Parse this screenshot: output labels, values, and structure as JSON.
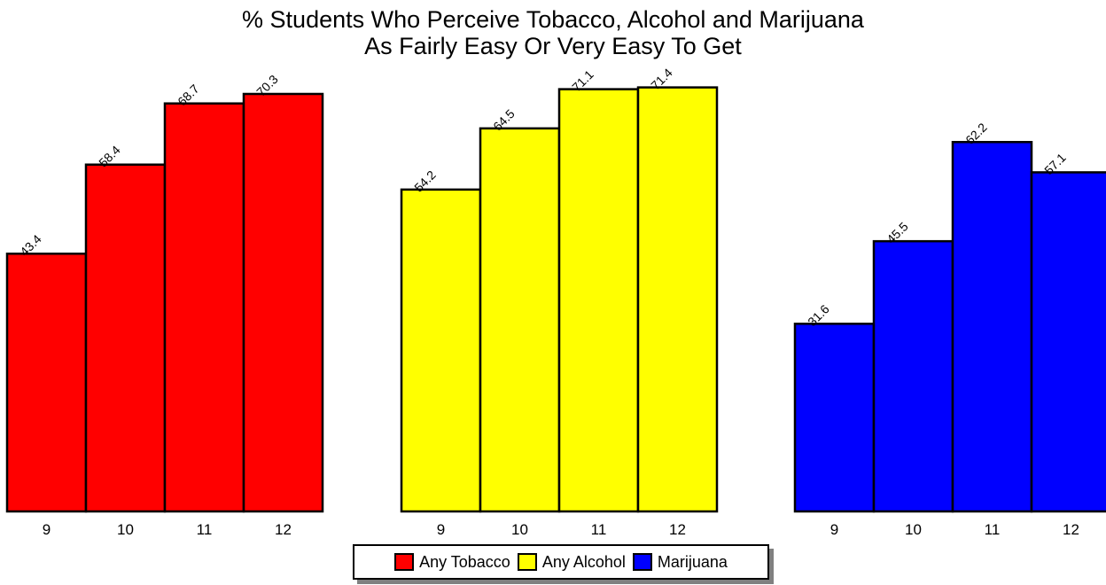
{
  "chart_data": {
    "type": "bar",
    "title": "% Students Who Perceive Tobacco, Alcohol and Marijuana",
    "subtitle": "As Fairly Easy Or Very Easy To Get",
    "categories": [
      "9",
      "10",
      "11",
      "12"
    ],
    "series": [
      {
        "name": "Any Tobacco",
        "color": "#ff0000",
        "values": [
          43.4,
          58.4,
          68.7,
          70.3
        ],
        "labels": [
          "43.4",
          "58.4",
          "68.7",
          "70.3"
        ]
      },
      {
        "name": "Any Alcohol",
        "color": "#ffff00",
        "values": [
          54.2,
          64.5,
          71.1,
          71.4
        ],
        "labels": [
          "54.2",
          "64.5",
          "71.1",
          "71.4"
        ]
      },
      {
        "name": "Marijuana",
        "color": "#0000ff",
        "values": [
          31.6,
          45.5,
          62.2,
          57.1
        ],
        "labels": [
          "31.6",
          "45.5",
          "62.2",
          "57.1"
        ]
      }
    ],
    "ylim": [
      0,
      100
    ],
    "grid": false,
    "legend_position": "bottom-center"
  }
}
